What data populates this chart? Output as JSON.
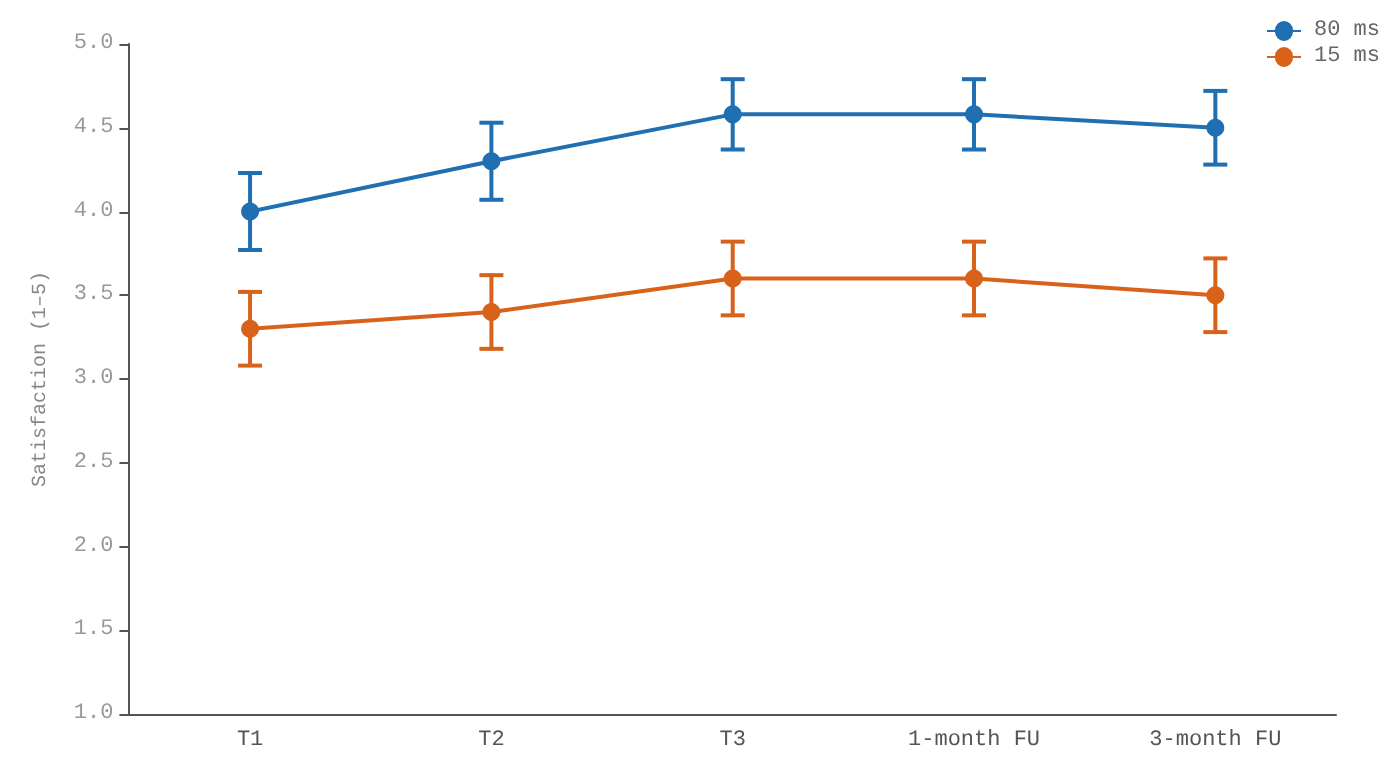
{
  "chart_data": {
    "type": "line",
    "ylabel": "Satisfaction (1–5)",
    "categories": [
      "T1",
      "T2",
      "T3",
      "1-month FU",
      "3-month FU"
    ],
    "series": [
      {
        "name": "80 ms",
        "color": "#1f6fb2",
        "values": [
          4.0,
          4.3,
          4.58,
          4.58,
          4.5
        ],
        "errors": [
          0.23,
          0.23,
          0.21,
          0.21,
          0.22
        ]
      },
      {
        "name": "15 ms",
        "color": "#d9621b",
        "values": [
          3.3,
          3.4,
          3.6,
          3.6,
          3.5
        ],
        "errors": [
          0.22,
          0.22,
          0.22,
          0.22,
          0.22
        ]
      }
    ],
    "ylim": [
      1.0,
      5.0
    ],
    "yticks": [
      {
        "value": 1,
        "label": "1.0"
      },
      1.5,
      {
        "value": 2,
        "label": "2.0"
      },
      2.5,
      {
        "value": 3,
        "label": "3.0"
      },
      3.5,
      {
        "value": 4,
        "label": "4.0"
      },
      4.5,
      {
        "value": 5,
        "label": "5.0"
      }
    ],
    "grid": false,
    "legend": "top right",
    "marker": "circle",
    "line_style": "solid"
  }
}
